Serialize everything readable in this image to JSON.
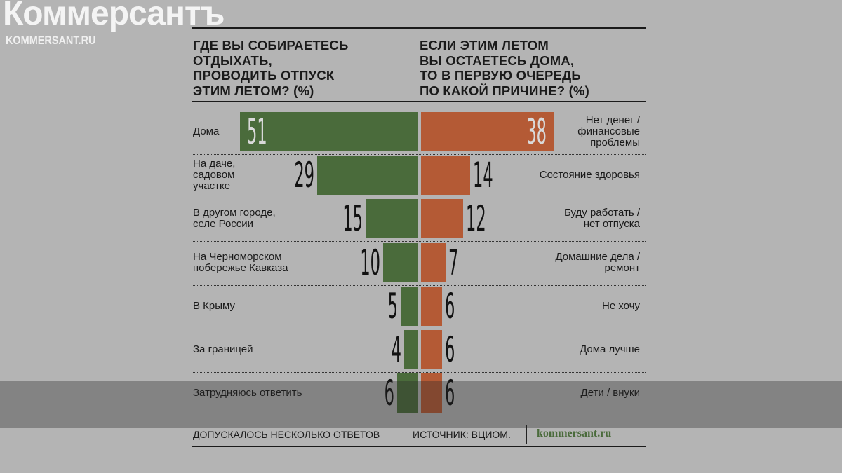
{
  "chart_data": [
    {
      "type": "bar",
      "orientation": "horizontal",
      "title": "ГДЕ ВЫ СОБИРАЕТЕСЬ\nОТДЫХАТЬ,\nПРОВОДИТЬ ОТПУСК\nЭТИМ ЛЕТОМ? (%)",
      "categories": [
        "Дома",
        "На даче,\nсадовом\nучастке",
        "В другом городе,\nселе России",
        "На Черноморском\nпобережье Кавказа",
        "В Крыму",
        "За границей",
        "Затрудняюсь ответить"
      ],
      "values": [
        51,
        29,
        15,
        10,
        5,
        4,
        6
      ],
      "color": "#4a6b3b"
    },
    {
      "type": "bar",
      "orientation": "horizontal",
      "title": "ЕСЛИ ЭТИМ ЛЕТОМ\nВЫ ОСТАЕТЕСЬ ДОМА,\nТО В ПЕРВУЮ ОЧЕРЕДЬ\nПО КАКОЙ ПРИЧИНЕ? (%)",
      "categories": [
        "Нет денег /\nфинансовые\nпроблемы",
        "Состояние здоровья",
        "Буду работать /\nнет отпуска",
        "Домашние дела /\nремонт",
        "Не хочу",
        "Дома лучше",
        "Дети / внуки"
      ],
      "values": [
        38,
        14,
        12,
        7,
        6,
        6,
        6
      ],
      "color": "#b45a35"
    }
  ],
  "footer": {
    "note": "ДОПУСКАЛОСЬ НЕСКОЛЬКО ОТВЕТОВ",
    "source": "ИСТОЧНИК: ВЦИОМ.",
    "site": "kommersant.ru"
  },
  "watermark": {
    "logo": "Коммерсантъ",
    "url": "KOMMERSANT.RU"
  }
}
